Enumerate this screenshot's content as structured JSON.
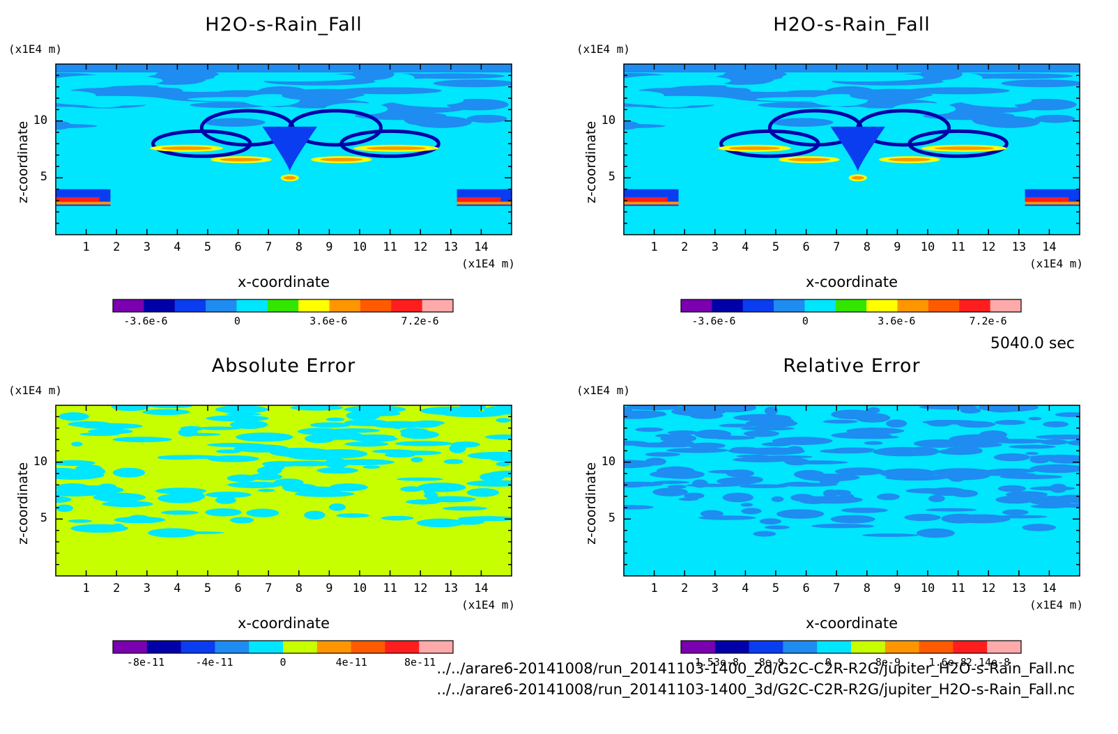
{
  "time_label": "5040.0 sec",
  "file_paths": [
    "../../arare6-20141008/run_20141103-1400_2d/G2C-C2R-R2G/jupiter_H2O-s-Rain_Fall.nc",
    "../../arare6-20141008/run_20141103-1400_3d/G2C-C2R-R2G/jupiter_H2O-s-Rain_Fall.nc"
  ],
  "colors": {
    "deep_purple": "#7a00b0",
    "navy": "#0000a8",
    "blue": "#0a3cf0",
    "mid_blue": "#1e8cf0",
    "cyan": "#00e6ff",
    "green": "#32e600",
    "yellow": "#ffff00",
    "lime": "#c8ff00",
    "orange": "#ff9600",
    "red_orange": "#ff5a00",
    "red": "#ff1e1e",
    "pink": "#ffaaaa"
  },
  "chart_data": [
    {
      "type": "heatmap",
      "title": "H2O-s-Rain_Fall",
      "xlabel": "x-coordinate",
      "ylabel": "z-coordinate",
      "x_unit": "(x1E4 m)",
      "y_unit": "(x1E4 m)",
      "xlim": [
        0,
        15
      ],
      "ylim": [
        0,
        15
      ],
      "xticks": [
        "1",
        "2",
        "3",
        "4",
        "5",
        "6",
        "7",
        "8",
        "9",
        "10",
        "11",
        "12",
        "13",
        "14"
      ],
      "yticks": [
        "5",
        "10"
      ],
      "colorbar": {
        "colors": [
          "#7a00b0",
          "#0000a8",
          "#0a3cf0",
          "#1e8cf0",
          "#00e6ff",
          "#32e600",
          "#ffff00",
          "#ff9600",
          "#ff5a00",
          "#ff1e1e",
          "#ffaaaa"
        ],
        "tick_labels": [
          "-3.6e-6",
          "0",
          "3.6e-6",
          "7.2e-6"
        ],
        "tick_values": [
          -3.6e-06,
          0,
          3.6e-06,
          7.2e-06
        ]
      },
      "background": "#00e6ff"
    },
    {
      "type": "heatmap",
      "title": "H2O-s-Rain_Fall",
      "xlabel": "x-coordinate",
      "ylabel": "z-coordinate",
      "x_unit": "(x1E4 m)",
      "y_unit": "(x1E4 m)",
      "xlim": [
        0,
        15
      ],
      "ylim": [
        0,
        15
      ],
      "xticks": [
        "1",
        "2",
        "3",
        "4",
        "5",
        "6",
        "7",
        "8",
        "9",
        "10",
        "11",
        "12",
        "13",
        "14"
      ],
      "yticks": [
        "5",
        "10"
      ],
      "colorbar": {
        "colors": [
          "#7a00b0",
          "#0000a8",
          "#0a3cf0",
          "#1e8cf0",
          "#00e6ff",
          "#32e600",
          "#ffff00",
          "#ff9600",
          "#ff5a00",
          "#ff1e1e",
          "#ffaaaa"
        ],
        "tick_labels": [
          "-3.6e-6",
          "0",
          "3.6e-6",
          "7.2e-6"
        ],
        "tick_values": [
          -3.6e-06,
          0,
          3.6e-06,
          7.2e-06
        ]
      },
      "background": "#00e6ff"
    },
    {
      "type": "heatmap",
      "title": "Absolute Error",
      "xlabel": "x-coordinate",
      "ylabel": "z-coordinate",
      "x_unit": "(x1E4 m)",
      "y_unit": "(x1E4 m)",
      "xlim": [
        0,
        15
      ],
      "ylim": [
        0,
        15
      ],
      "xticks": [
        "1",
        "2",
        "3",
        "4",
        "5",
        "6",
        "7",
        "8",
        "9",
        "10",
        "11",
        "12",
        "13",
        "14"
      ],
      "yticks": [
        "5",
        "10"
      ],
      "colorbar": {
        "colors": [
          "#7a00b0",
          "#0000a8",
          "#0a3cf0",
          "#1e8cf0",
          "#00e6ff",
          "#c8ff00",
          "#ff9600",
          "#ff5a00",
          "#ff1e1e",
          "#ffaaaa"
        ],
        "tick_labels": [
          "-8e-11",
          "-4e-11",
          "0",
          "4e-11",
          "8e-11"
        ],
        "tick_values": [
          -8e-11,
          -4e-11,
          0,
          4e-11,
          8e-11
        ]
      },
      "background": "#c8ff00"
    },
    {
      "type": "heatmap",
      "title": "Relative Error",
      "xlabel": "x-coordinate",
      "ylabel": "z-coordinate",
      "x_unit": "(x1E4 m)",
      "y_unit": "(x1E4 m)",
      "xlim": [
        0,
        15
      ],
      "ylim": [
        0,
        15
      ],
      "xticks": [
        "1",
        "2",
        "3",
        "4",
        "5",
        "6",
        "7",
        "8",
        "9",
        "10",
        "11",
        "12",
        "13",
        "14"
      ],
      "yticks": [
        "5",
        "10"
      ],
      "colorbar": {
        "colors": [
          "#7a00b0",
          "#0000a8",
          "#0a3cf0",
          "#1e8cf0",
          "#00e6ff",
          "#c8ff00",
          "#ff9600",
          "#ff5a00",
          "#ff1e1e",
          "#ffaaaa"
        ],
        "tick_labels": [
          "-1.53e-8",
          "-8e-9",
          "0",
          "8e-9",
          "1.6e-8",
          "2.14e-8"
        ],
        "tick_values": [
          -1.53e-08,
          -8e-09,
          0,
          8e-09,
          1.6e-08,
          2.14e-08
        ]
      },
      "background": "#00e6ff"
    }
  ]
}
